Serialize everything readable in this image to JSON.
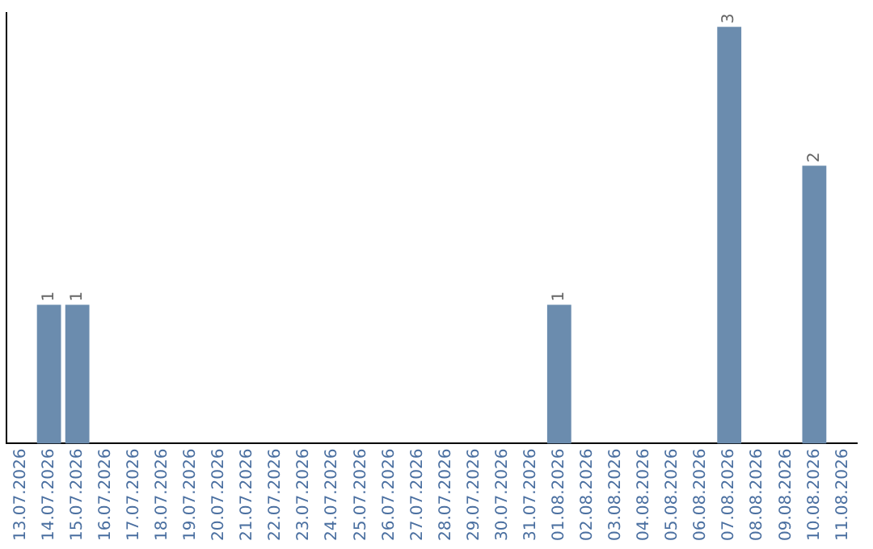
{
  "chart_data": {
    "type": "bar",
    "categories": [
      "13.07.2026",
      "14.07.2026",
      "15.07.2026",
      "16.07.2026",
      "17.07.2026",
      "18.07.2026",
      "19.07.2026",
      "20.07.2026",
      "21.07.2026",
      "22.07.2026",
      "23.07.2026",
      "24.07.2026",
      "25.07.2026",
      "26.07.2026",
      "27.07.2026",
      "28.07.2026",
      "29.07.2026",
      "30.07.2026",
      "31.07.2026",
      "01.08.2026",
      "02.08.2026",
      "03.08.2026",
      "04.08.2026",
      "05.08.2026",
      "06.08.2026",
      "07.08.2026",
      "08.08.2026",
      "09.08.2026",
      "10.08.2026",
      "11.08.2026"
    ],
    "values": [
      0,
      1,
      1,
      0,
      0,
      0,
      0,
      0,
      0,
      0,
      0,
      0,
      0,
      0,
      0,
      0,
      0,
      0,
      0,
      1,
      0,
      0,
      0,
      0,
      0,
      3,
      0,
      0,
      2,
      0
    ],
    "value_labels": [
      null,
      "1",
      "1",
      null,
      null,
      null,
      null,
      null,
      null,
      null,
      null,
      null,
      null,
      null,
      null,
      null,
      null,
      null,
      null,
      "1",
      null,
      null,
      null,
      null,
      null,
      "3",
      null,
      null,
      "2",
      null
    ],
    "color": "#6b8cae",
    "ylim": [
      0,
      3.1
    ],
    "grid": false,
    "legend": false,
    "tick_labels": "x"
  }
}
